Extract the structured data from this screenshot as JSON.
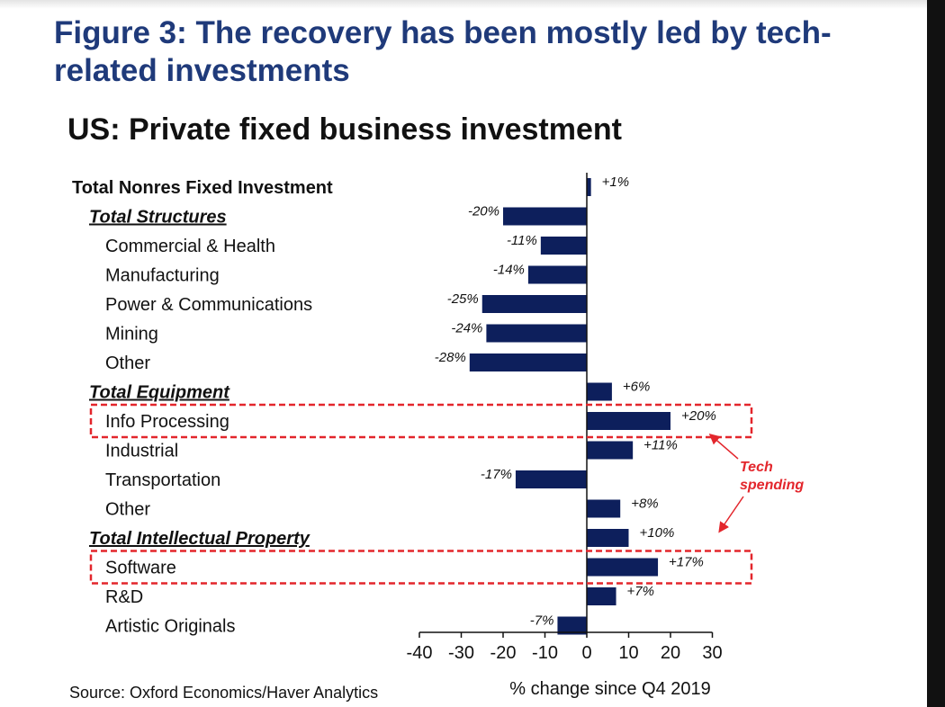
{
  "figure_title": "Figure 3: The recovery has been mostly led by tech-related investments",
  "source": "Source: Oxford Economics/Haver Analytics",
  "colors": {
    "bar": "#0d1f5c",
    "title": "#1f3a7a",
    "highlight": "#e3262c"
  },
  "chart_data": {
    "type": "bar",
    "orientation": "horizontal",
    "title": "US: Private fixed business investment",
    "xlabel": "% change since Q4 2019",
    "xlim": [
      -40,
      30
    ],
    "xticks": [
      "-40",
      "-30",
      "-20",
      "-10",
      "0",
      "10",
      "20",
      "30"
    ],
    "grid": false,
    "categories": [
      {
        "label": "Total Nonres Fixed Investment",
        "value": 1,
        "data_label": "+1%",
        "style": "bold",
        "indent": 0
      },
      {
        "label": "Total Structures",
        "value": -20,
        "data_label": "-20%",
        "style": "bold-italic",
        "indent": 1
      },
      {
        "label": "Commercial & Health",
        "value": -11,
        "data_label": "-11%",
        "style": "normal",
        "indent": 2
      },
      {
        "label": "Manufacturing",
        "value": -14,
        "data_label": "-14%",
        "style": "normal",
        "indent": 2
      },
      {
        "label": "Power & Communications",
        "value": -25,
        "data_label": "-25%",
        "style": "normal",
        "indent": 2
      },
      {
        "label": "Mining",
        "value": -24,
        "data_label": "-24%",
        "style": "normal",
        "indent": 2
      },
      {
        "label": "Other",
        "value": -28,
        "data_label": "-28%",
        "style": "normal",
        "indent": 2
      },
      {
        "label": "Total Equipment",
        "value": 6,
        "data_label": "+6%",
        "style": "bold-italic",
        "indent": 1
      },
      {
        "label": "Info Processing",
        "value": 20,
        "data_label": "+20%",
        "style": "normal",
        "indent": 2,
        "highlight": true
      },
      {
        "label": "Industrial",
        "value": 11,
        "data_label": "+11%",
        "style": "normal",
        "indent": 2
      },
      {
        "label": "Transportation",
        "value": -17,
        "data_label": "-17%",
        "style": "normal",
        "indent": 2
      },
      {
        "label": "Other",
        "value": 8,
        "data_label": "+8%",
        "style": "normal",
        "indent": 2
      },
      {
        "label": "Total Intellectual Property",
        "value": 10,
        "data_label": "+10%",
        "style": "bold-italic",
        "indent": 1
      },
      {
        "label": "Software",
        "value": 17,
        "data_label": "+17%",
        "style": "normal",
        "indent": 2,
        "highlight": true
      },
      {
        "label": "R&D",
        "value": 7,
        "data_label": "+7%",
        "style": "normal",
        "indent": 2
      },
      {
        "label": "Artistic Originals",
        "value": -7,
        "data_label": "-7%",
        "style": "normal",
        "indent": 2
      }
    ],
    "annotations": [
      {
        "text_lines": [
          "Tech",
          "spending"
        ],
        "targets": [
          "Info Processing",
          "Software"
        ]
      }
    ]
  }
}
